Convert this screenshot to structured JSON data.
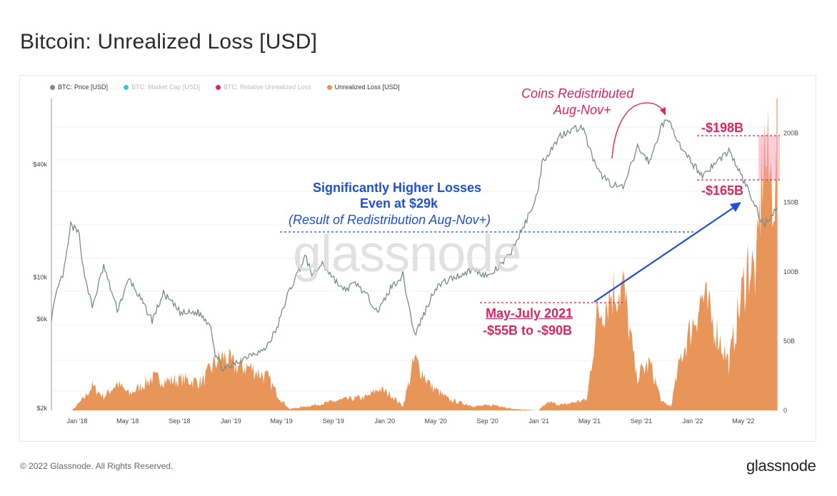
{
  "page": {
    "title": "Bitcoin: Unrealized Loss [USD]",
    "footer_copyright": "© 2022 Glassnode. All Rights Reserved.",
    "footer_logo": "glassnode",
    "watermark": "glassnode"
  },
  "colors": {
    "price": "#7a8c89",
    "market_cap": "#3cc1e8",
    "rel_loss": "#e0245e",
    "unrealized_loss": "#e8955a",
    "annotation_blue": "#1e4fd8",
    "annotation_pink": "#e0245e"
  },
  "annotations": {
    "blue_line1": "Significantly Higher Losses",
    "blue_line2": "Even at $29k",
    "blue_line3": "(Result of Redistribution Aug-Nov+)",
    "coins_line1": "Coins Redistributed",
    "coins_line2": "Aug-Nov+",
    "top_value": "-$198B",
    "bottom_value": "-$165B",
    "may_july_line1": "May-July 2021",
    "may_july_line2": "-$55B to -$90B"
  },
  "chart_data": {
    "type": "line",
    "title": "Bitcoin: Unrealized Loss [USD]",
    "legend": [
      {
        "name": "BTC: Price [USD]",
        "color": "#7a8c89",
        "active": true
      },
      {
        "name": "BTC: Market Cap [USD]",
        "color": "#3cc1e8",
        "active": false
      },
      {
        "name": "BTC: Relative Unrealized Loss",
        "color": "#e0245e",
        "active": false
      },
      {
        "name": "Unrealized Loss [USD]",
        "color": "#e8955a",
        "active": true
      }
    ],
    "legend_position": "top-left",
    "x_tick_labels": [
      "Jan '18",
      "May '18",
      "Sep '18",
      "Jan '19",
      "May '19",
      "Sep '19",
      "Jan '20",
      "May '20",
      "Sep '20",
      "Jan '21",
      "May '21",
      "Sep '21",
      "Jan '22",
      "May '22"
    ],
    "y_left_tick_labels": [
      "$2k",
      "$6k",
      "$10k",
      "$40k"
    ],
    "y_left_scale": "log",
    "y_right_tick_labels": [
      "0",
      "50B",
      "100B",
      "150B",
      "200B"
    ],
    "y_right_range": [
      0,
      225
    ],
    "x_range": [
      "2017-11-01",
      "2022-07-20"
    ],
    "series": [
      {
        "name": "BTC: Price [USD]",
        "axis": "left",
        "points": [
          [
            "2017-11-01",
            6100
          ],
          [
            "2017-11-15",
            8500
          ],
          [
            "2017-12-01",
            10800
          ],
          [
            "2017-12-17",
            19000
          ],
          [
            "2018-01-06",
            17000
          ],
          [
            "2018-01-16",
            11000
          ],
          [
            "2018-02-06",
            6900
          ],
          [
            "2018-03-05",
            11500
          ],
          [
            "2018-04-06",
            6700
          ],
          [
            "2018-05-05",
            9800
          ],
          [
            "2018-06-28",
            5900
          ],
          [
            "2018-07-25",
            8200
          ],
          [
            "2018-09-05",
            6400
          ],
          [
            "2018-10-15",
            6500
          ],
          [
            "2018-11-14",
            5600
          ],
          [
            "2018-11-25",
            3900
          ],
          [
            "2018-12-15",
            3200
          ],
          [
            "2019-01-20",
            3550
          ],
          [
            "2019-02-20",
            3950
          ],
          [
            "2019-03-20",
            4050
          ],
          [
            "2019-04-20",
            5300
          ],
          [
            "2019-05-15",
            8000
          ],
          [
            "2019-06-26",
            12900
          ],
          [
            "2019-07-15",
            10200
          ],
          [
            "2019-08-06",
            11900
          ],
          [
            "2019-09-24",
            8500
          ],
          [
            "2019-10-26",
            9300
          ],
          [
            "2019-12-18",
            6600
          ],
          [
            "2020-01-15",
            8800
          ],
          [
            "2020-02-13",
            10300
          ],
          [
            "2020-03-12",
            4900
          ],
          [
            "2020-04-30",
            8800
          ],
          [
            "2020-06-01",
            9700
          ],
          [
            "2020-07-28",
            11000
          ],
          [
            "2020-09-05",
            10100
          ],
          [
            "2020-10-21",
            12900
          ],
          [
            "2020-11-30",
            19500
          ],
          [
            "2020-12-31",
            29000
          ],
          [
            "2021-01-08",
            41000
          ],
          [
            "2021-02-21",
            57000
          ],
          [
            "2021-03-13",
            61000
          ],
          [
            "2021-04-14",
            63500
          ],
          [
            "2021-05-19",
            37000
          ],
          [
            "2021-06-22",
            31500
          ],
          [
            "2021-07-20",
            29800
          ],
          [
            "2021-08-23",
            49500
          ],
          [
            "2021-09-21",
            41000
          ],
          [
            "2021-10-20",
            66000
          ],
          [
            "2021-11-10",
            67500
          ],
          [
            "2021-12-04",
            48000
          ],
          [
            "2022-01-24",
            35000
          ],
          [
            "2022-03-28",
            47500
          ],
          [
            "2022-05-10",
            30000
          ],
          [
            "2022-06-18",
            19000
          ],
          [
            "2022-07-20",
            23500
          ]
        ]
      },
      {
        "name": "Unrealized Loss [USD]",
        "axis": "right",
        "points": [
          [
            "2017-11-01",
            0
          ],
          [
            "2017-12-20",
            0
          ],
          [
            "2018-01-20",
            10
          ],
          [
            "2018-02-06",
            18
          ],
          [
            "2018-03-05",
            10
          ],
          [
            "2018-04-06",
            20
          ],
          [
            "2018-05-05",
            12
          ],
          [
            "2018-06-28",
            24
          ],
          [
            "2018-08-10",
            22
          ],
          [
            "2018-09-10",
            23
          ],
          [
            "2018-10-25",
            21
          ],
          [
            "2018-11-25",
            36
          ],
          [
            "2018-12-15",
            40
          ],
          [
            "2019-01-10",
            33
          ],
          [
            "2019-02-15",
            32
          ],
          [
            "2019-03-30",
            24
          ],
          [
            "2019-04-25",
            10
          ],
          [
            "2019-05-20",
            1
          ],
          [
            "2019-07-20",
            4
          ],
          [
            "2019-09-24",
            8
          ],
          [
            "2019-11-20",
            10
          ],
          [
            "2019-12-18",
            16
          ],
          [
            "2020-01-15",
            12
          ],
          [
            "2020-02-13",
            3
          ],
          [
            "2020-03-12",
            38
          ],
          [
            "2020-04-20",
            18
          ],
          [
            "2020-06-01",
            8
          ],
          [
            "2020-08-01",
            3
          ],
          [
            "2020-09-20",
            4
          ],
          [
            "2020-11-01",
            1
          ],
          [
            "2020-12-31",
            0
          ],
          [
            "2021-01-22",
            6
          ],
          [
            "2021-02-28",
            4
          ],
          [
            "2021-03-25",
            6
          ],
          [
            "2021-04-25",
            8
          ],
          [
            "2021-05-19",
            70
          ],
          [
            "2021-06-22",
            88
          ],
          [
            "2021-07-20",
            92
          ],
          [
            "2021-08-20",
            25
          ],
          [
            "2021-09-21",
            35
          ],
          [
            "2021-10-20",
            6
          ],
          [
            "2021-11-10",
            3
          ],
          [
            "2021-12-04",
            40
          ],
          [
            "2022-01-24",
            85
          ],
          [
            "2022-02-25",
            60
          ],
          [
            "2022-03-28",
            35
          ],
          [
            "2022-05-12",
            110
          ],
          [
            "2022-06-01",
            100
          ],
          [
            "2022-06-18",
            198
          ],
          [
            "2022-07-01",
            175
          ],
          [
            "2022-07-20",
            165
          ]
        ]
      }
    ]
  }
}
